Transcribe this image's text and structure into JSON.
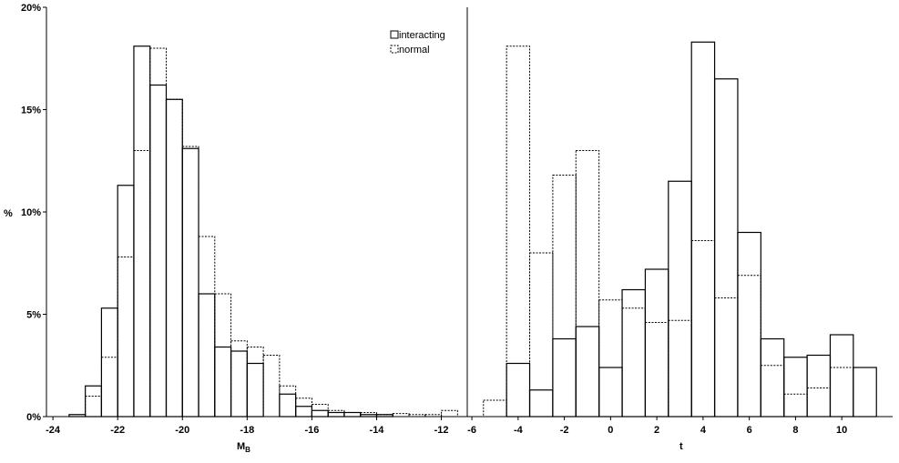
{
  "chart_data": [
    {
      "type": "bar",
      "panel": "left",
      "xlabel": "M",
      "xlabel_sub": "B",
      "ylabel": "%",
      "xlim": [
        -24.2,
        -11.2
      ],
      "ylim": [
        0,
        20
      ],
      "x_ticks": [
        -24,
        -22,
        -20,
        -18,
        -16,
        -14,
        -12
      ],
      "y_ticks": [
        "0%",
        "5%",
        "10%",
        "15%",
        "20%"
      ],
      "y_tick_values": [
        0,
        5,
        10,
        15,
        20
      ],
      "bin_width": 0.5,
      "x": [
        -23.25,
        -22.75,
        -22.25,
        -21.75,
        -21.25,
        -20.75,
        -20.25,
        -19.75,
        -19.25,
        -18.75,
        -18.25,
        -17.75,
        -17.25,
        -16.75,
        -16.25,
        -15.75,
        -15.25,
        -14.75,
        -14.25,
        -13.75,
        -13.25,
        -12.75,
        -12.25,
        -11.75
      ],
      "series": [
        {
          "name": "interacting",
          "style": "solid",
          "values": [
            0.1,
            1.5,
            5.3,
            11.3,
            18.1,
            16.2,
            15.5,
            13.1,
            6.0,
            3.4,
            3.2,
            2.6,
            0.0,
            1.1,
            0.5,
            0.3,
            0.2,
            0.2,
            0.1,
            0.1,
            0.0,
            0.0,
            0.0,
            0.0
          ]
        },
        {
          "name": "normal",
          "style": "dashed",
          "values": [
            0.0,
            1.0,
            2.9,
            7.8,
            13.0,
            18.0,
            15.5,
            13.2,
            8.8,
            6.0,
            3.7,
            3.4,
            3.0,
            1.5,
            0.9,
            0.6,
            0.3,
            0.2,
            0.2,
            0.1,
            0.15,
            0.1,
            0.1,
            0.3
          ]
        }
      ],
      "grid": false,
      "legend": "top-right"
    },
    {
      "type": "bar",
      "panel": "right",
      "xlabel": "t",
      "ylim": [
        0,
        20
      ],
      "xlim": [
        -6.2,
        12.2
      ],
      "x_ticks": [
        -6,
        -4,
        -2,
        0,
        2,
        4,
        6,
        8,
        10
      ],
      "bin_width": 1,
      "x": [
        -5,
        -4,
        -3,
        -2,
        -1,
        0,
        1,
        2,
        3,
        4,
        5,
        6,
        7,
        8,
        9,
        10,
        11
      ],
      "series": [
        {
          "name": "interacting",
          "style": "solid",
          "values": [
            0.0,
            2.6,
            1.3,
            3.8,
            4.4,
            2.4,
            6.2,
            7.2,
            11.5,
            18.3,
            16.5,
            9.0,
            3.8,
            2.9,
            3.0,
            4.0,
            2.4
          ]
        },
        {
          "name": "normal",
          "style": "dashed",
          "values": [
            0.8,
            18.1,
            8.0,
            11.8,
            13.0,
            5.7,
            5.3,
            4.6,
            4.7,
            8.6,
            5.8,
            6.9,
            2.5,
            1.1,
            1.4,
            2.4,
            0.0
          ]
        }
      ],
      "grid": false
    }
  ],
  "legend": {
    "items": [
      {
        "label": "interacting",
        "style": "solid"
      },
      {
        "label": "normal",
        "style": "dashed"
      }
    ]
  },
  "colors": {
    "stroke": "#000000",
    "background": "#ffffff"
  }
}
